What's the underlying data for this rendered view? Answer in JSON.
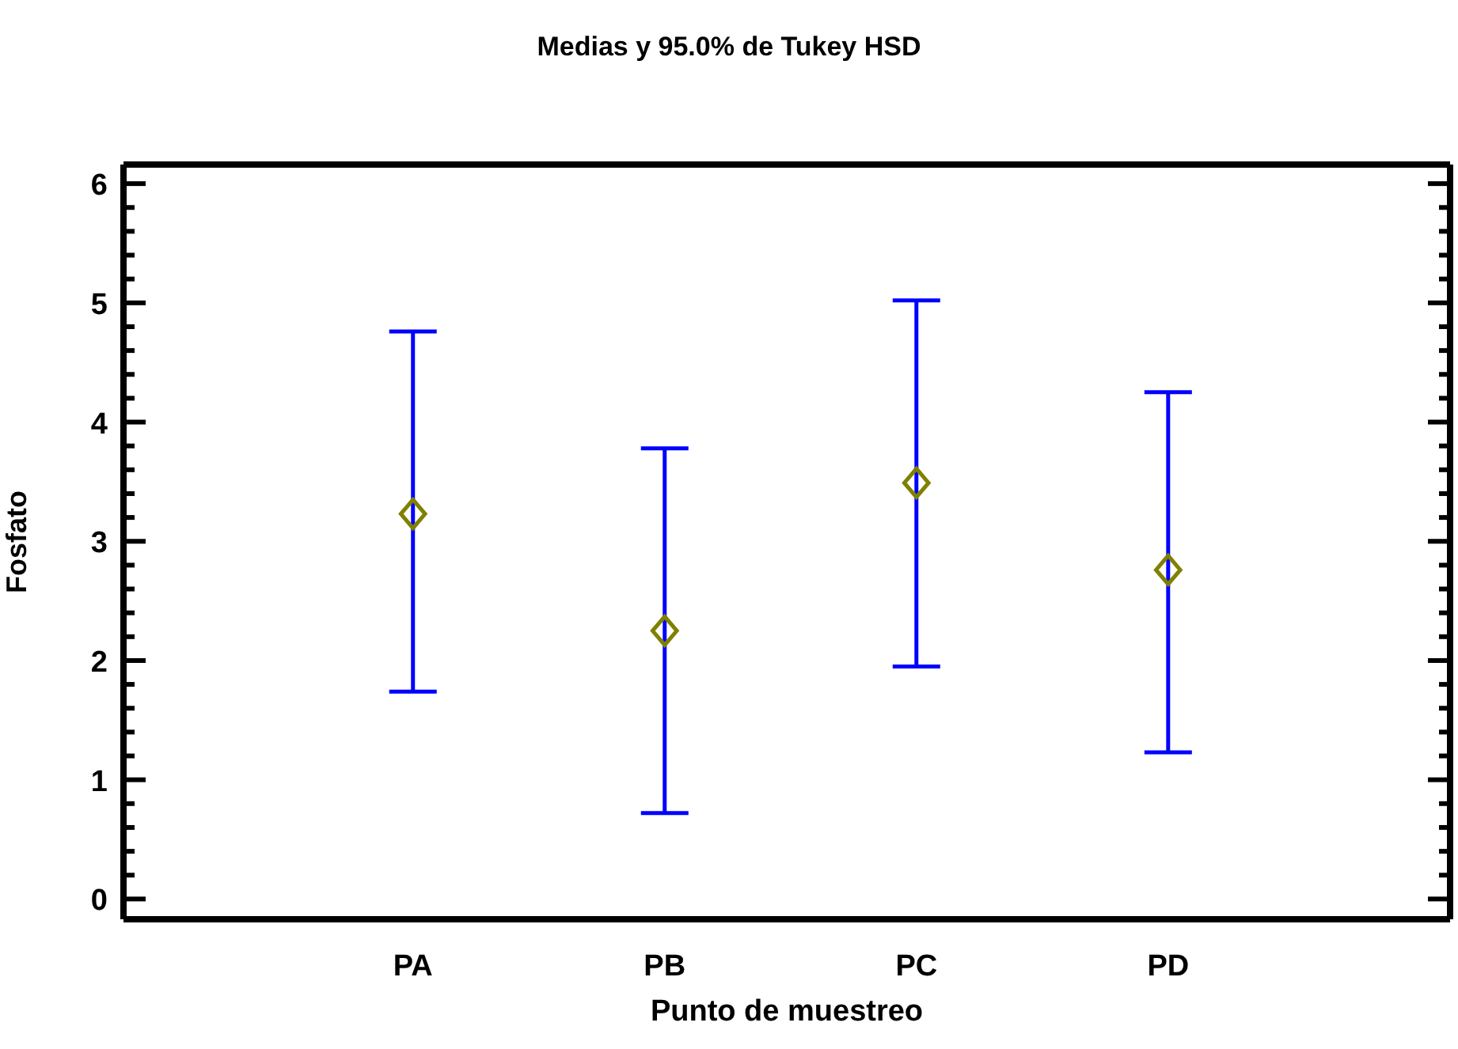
{
  "chart_data": {
    "type": "scatter",
    "title": "Medias y 95.0% de Tukey HSD",
    "xlabel": "Punto de muestreo",
    "ylabel": "Fosfato",
    "categories": [
      "PA",
      "PB",
      "PC",
      "PD"
    ],
    "series": [
      {
        "color": "#808000",
        "values": [
          3.23,
          2.25,
          3.49,
          2.76
        ],
        "errors": [
          [
            1.74,
            4.76
          ],
          [
            0.72,
            3.78
          ],
          [
            1.95,
            5.02
          ],
          [
            1.23,
            4.25
          ]
        ]
      }
    ],
    "marker": "diamond",
    "grid": false,
    "legend": false,
    "ylim": [
      -0.17,
      6.16
    ],
    "yticks": [
      0,
      {
        "value": 0.2,
        "label": null
      },
      {
        "value": 0.4,
        "label": null
      },
      {
        "value": 0.6,
        "label": null
      },
      {
        "value": 0.8,
        "label": null
      },
      1,
      {
        "value": 1.2,
        "label": null
      },
      {
        "value": 1.4,
        "label": null
      },
      {
        "value": 1.6,
        "label": null
      },
      {
        "value": 1.8,
        "label": null
      },
      2,
      {
        "value": 2.2,
        "label": null
      },
      {
        "value": 2.4,
        "label": null
      },
      {
        "value": 2.6,
        "label": null
      },
      {
        "value": 2.8,
        "label": null
      },
      3,
      {
        "value": 3.2,
        "label": null
      },
      {
        "value": 3.4,
        "label": null
      },
      {
        "value": 3.6,
        "label": null
      },
      {
        "value": 3.8,
        "label": null
      },
      4,
      {
        "value": 4.2,
        "label": null
      },
      {
        "value": 4.4,
        "label": null
      },
      {
        "value": 4.6,
        "label": null
      },
      {
        "value": 4.8,
        "label": null
      },
      5,
      {
        "value": 5.2,
        "label": null
      },
      {
        "value": 5.4,
        "label": null
      },
      {
        "value": 5.6,
        "label": null
      },
      {
        "value": 5.8,
        "label": null
      },
      6
    ]
  }
}
